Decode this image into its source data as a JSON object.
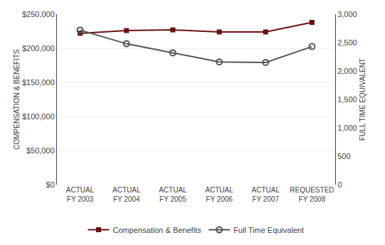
{
  "chart_data": {
    "type": "line",
    "categories": [
      "ACTUAL\nFY 2003",
      "ACTUAL\nFY 2004",
      "ACTUAL\nFY 2005",
      "ACTUAL\nFY 2006",
      "ACTUAL\nFY 2007",
      "REQUESTED\nFY 2008"
    ],
    "series": [
      {
        "name": "Compensation & Benefits",
        "color": "#6b1010",
        "marker": "square",
        "values": [
          222000,
          226000,
          227000,
          224000,
          224000,
          238000
        ]
      },
      {
        "name": "Full Time Equivalent",
        "color": "#555555",
        "marker": "circle-open",
        "axis": "y2",
        "values": [
          2720,
          2480,
          2320,
          2160,
          2150,
          2430
        ]
      }
    ],
    "ylabel": "COMPENSATION & BENEFITS",
    "y2label": "FULL TIME EQUIVALENT",
    "ylim": [
      0,
      250000
    ],
    "yticks": [
      {
        "value": 0,
        "label": "$0"
      },
      {
        "value": 50000,
        "label": "$50,000"
      },
      {
        "value": 100000,
        "label": "$100,000"
      },
      {
        "value": 150000,
        "label": "$150,000"
      },
      {
        "value": 200000,
        "label": "$200,000"
      },
      {
        "value": 250000,
        "label": "$250,000"
      }
    ],
    "y2lim": [
      0,
      3000
    ],
    "y2ticks": [
      0,
      500,
      {
        "value": 1000,
        "label": "1,000"
      },
      {
        "value": 1500,
        "label": "1,500"
      },
      {
        "value": 2000,
        "label": "2,000"
      },
      {
        "value": 2500,
        "label": "2,500"
      },
      {
        "value": 3000,
        "label": "3,000"
      }
    ],
    "grid": true,
    "legend": "bottom"
  }
}
